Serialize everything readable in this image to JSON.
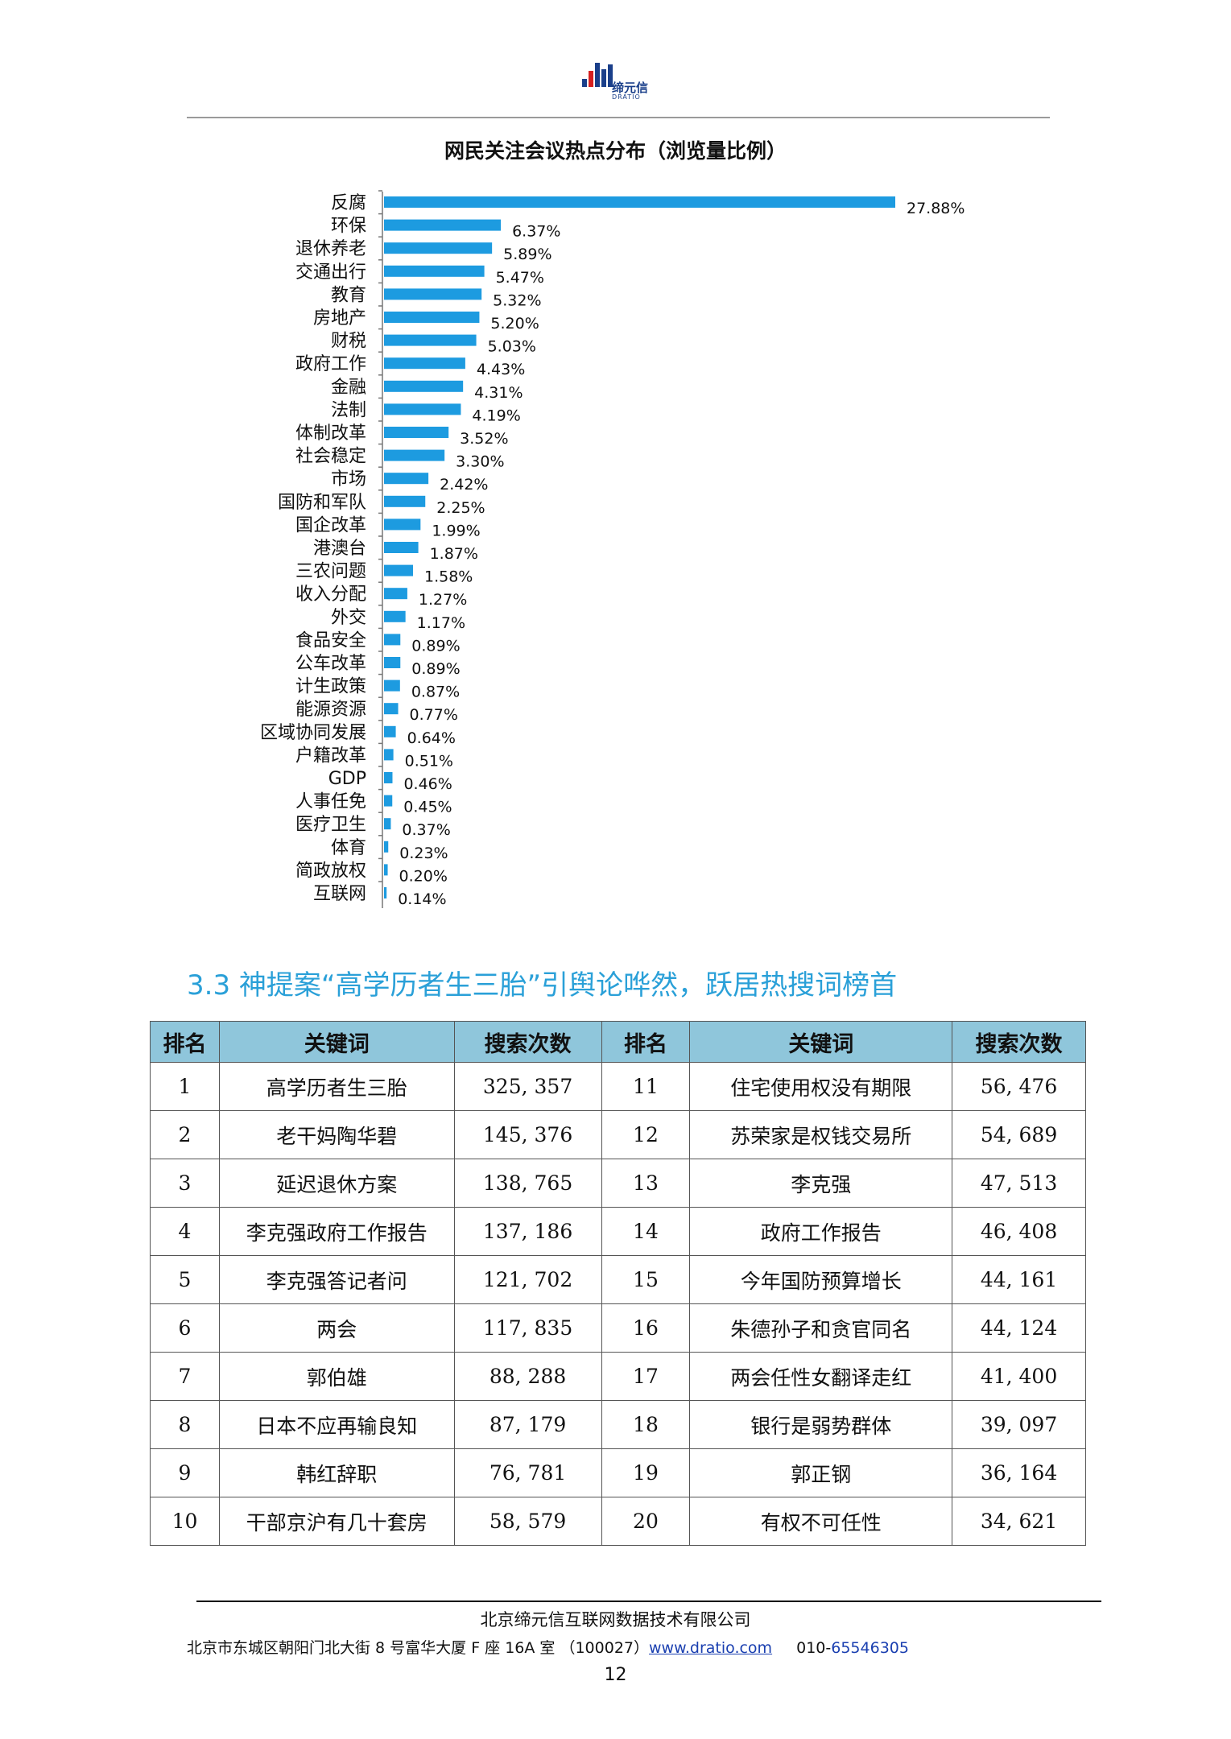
{
  "logo": {
    "name": "缔元信",
    "sub": "DRATIO"
  },
  "chart_data": {
    "type": "bar",
    "title": "网民关注会议热点分布（浏览量比例）",
    "categories": [
      "反腐",
      "环保",
      "退休养老",
      "交通出行",
      "教育",
      "房地产",
      "财税",
      "政府工作",
      "金融",
      "法制",
      "体制改革",
      "社会稳定",
      "市场",
      "国防和军队",
      "国企改革",
      "港澳台",
      "三农问题",
      "收入分配",
      "外交",
      "食品安全",
      "公车改革",
      "计生政策",
      "能源资源",
      "区域协同发展",
      "户籍改革",
      "GDP",
      "人事任免",
      "医疗卫生",
      "体育",
      "简政放权",
      "互联网"
    ],
    "values": [
      27.88,
      6.37,
      5.89,
      5.47,
      5.32,
      5.2,
      5.03,
      4.43,
      4.31,
      4.19,
      3.52,
      3.3,
      2.42,
      2.25,
      1.99,
      1.87,
      1.58,
      1.27,
      1.17,
      0.89,
      0.89,
      0.87,
      0.77,
      0.64,
      0.51,
      0.46,
      0.45,
      0.37,
      0.23,
      0.2,
      0.14
    ],
    "labels": [
      "27.88%",
      "6.37%",
      "5.89%",
      "5.47%",
      "5.32%",
      "5.20%",
      "5.03%",
      "4.43%",
      "4.31%",
      "4.19%",
      "3.52%",
      "3.30%",
      "2.42%",
      "2.25%",
      "1.99%",
      "1.87%",
      "1.58%",
      "1.27%",
      "1.17%",
      "0.89%",
      "0.89%",
      "0.87%",
      "0.77%",
      "0.64%",
      "0.51%",
      "0.46%",
      "0.45%",
      "0.37%",
      "0.23%",
      "0.20%",
      "0.14%"
    ],
    "orientation": "horizontal",
    "bar_color": "#1d9be0",
    "xlabel": "",
    "ylabel": ""
  },
  "section": {
    "title": "3.3 神提案“高学历者生三胎”引舆论哗然，跃居热搜词榜首"
  },
  "table": {
    "headers": [
      "排名",
      "关键词",
      "搜索次数",
      "排名",
      "关键词",
      "搜索次数"
    ],
    "rows": [
      [
        "1",
        "高学历者生三胎",
        "325, 357",
        "11",
        "住宅使用权没有期限",
        "56, 476"
      ],
      [
        "2",
        "老干妈陶华碧",
        "145, 376",
        "12",
        "苏荣家是权钱交易所",
        "54, 689"
      ],
      [
        "3",
        "延迟退休方案",
        "138, 765",
        "13",
        "李克强",
        "47, 513"
      ],
      [
        "4",
        "李克强政府工作报告",
        "137, 186",
        "14",
        "政府工作报告",
        "46, 408"
      ],
      [
        "5",
        "李克强答记者问",
        "121, 702",
        "15",
        "今年国防预算增长",
        "44, 161"
      ],
      [
        "6",
        "两会",
        "117, 835",
        "16",
        "朱德孙子和贪官同名",
        "44, 124"
      ],
      [
        "7",
        "郭伯雄",
        "88, 288",
        "17",
        "两会任性女翻译走红",
        "41, 400"
      ],
      [
        "8",
        "日本不应再输良知",
        "87, 179",
        "18",
        "银行是弱势群体",
        "39, 097"
      ],
      [
        "9",
        "韩红辞职",
        "76, 781",
        "19",
        "郭正钢",
        "36, 164"
      ],
      [
        "10",
        "干部京沪有几十套房",
        "58, 579",
        "20",
        "有权不可任性",
        "34, 621"
      ]
    ]
  },
  "footer": {
    "company": "北京缔元信互联网数据技术有限公司",
    "address": "北京市东城区朝阳门北大街 8 号富华大厦 F 座 16A 室 （100027）",
    "url": "www.dratio.com",
    "phone_prefix": "010-",
    "phone": "65546305",
    "page": "12"
  }
}
